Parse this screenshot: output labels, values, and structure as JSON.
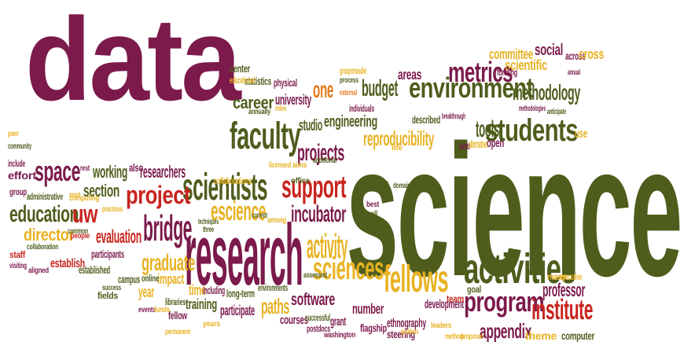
{
  "palette": {
    "maroon": "#7b1a4b",
    "olive": "#4e5d1c",
    "orange": "#e07b1d",
    "amber": "#e8b222",
    "red": "#c8241e",
    "brown": "#7a3c12",
    "gold": "#c99a23"
  },
  "words": [
    {
      "text": "data",
      "color": "maroon"
    },
    {
      "text": "science",
      "color": "olive"
    },
    {
      "text": "research",
      "color": "maroon"
    },
    {
      "text": "environment",
      "color": "olive"
    },
    {
      "text": "faculty",
      "color": "olive"
    },
    {
      "text": "scientists",
      "color": "olive"
    },
    {
      "text": "support",
      "color": "red"
    },
    {
      "text": "students",
      "color": "olive"
    },
    {
      "text": "activities",
      "color": "olive"
    },
    {
      "text": "fellows",
      "color": "amber"
    },
    {
      "text": "bridge",
      "color": "maroon"
    },
    {
      "text": "space",
      "color": "maroon"
    },
    {
      "text": "metrics",
      "color": "maroon"
    },
    {
      "text": "sciences",
      "color": "amber"
    },
    {
      "text": "program",
      "color": "maroon"
    },
    {
      "text": "institute",
      "color": "red"
    },
    {
      "text": "education",
      "color": "olive"
    },
    {
      "text": "escience",
      "color": "amber"
    },
    {
      "text": "project",
      "color": "red"
    },
    {
      "text": "projects",
      "color": "maroon"
    },
    {
      "text": "graduate",
      "color": "amber"
    },
    {
      "text": "activity",
      "color": "amber"
    },
    {
      "text": "incubator",
      "color": "maroon"
    },
    {
      "text": "career",
      "color": "olive"
    },
    {
      "text": "one",
      "color": "orange"
    },
    {
      "text": "budget",
      "color": "olive"
    },
    {
      "text": "methodology",
      "color": "olive"
    },
    {
      "text": "reproducibility",
      "color": "amber"
    },
    {
      "text": "uw",
      "color": "red"
    },
    {
      "text": "director",
      "color": "amber"
    },
    {
      "text": "evaluation",
      "color": "red"
    },
    {
      "text": "engineering",
      "color": "olive"
    },
    {
      "text": "tools",
      "color": "olive"
    },
    {
      "text": "professor",
      "color": "maroon"
    },
    {
      "text": "appendix",
      "color": "maroon"
    },
    {
      "text": "software",
      "color": "maroon"
    },
    {
      "text": "paths",
      "color": "amber"
    },
    {
      "text": "section",
      "color": "olive"
    },
    {
      "text": "working",
      "color": "olive"
    },
    {
      "text": "researchers",
      "color": "maroon"
    },
    {
      "text": "committee",
      "color": "amber"
    },
    {
      "text": "social",
      "color": "maroon"
    },
    {
      "text": "scientific",
      "color": "amber"
    },
    {
      "text": "university",
      "color": "maroon"
    },
    {
      "text": "areas",
      "color": "maroon"
    },
    {
      "text": "studio",
      "color": "olive"
    },
    {
      "text": "training",
      "color": "olive"
    },
    {
      "text": "year",
      "color": "amber"
    },
    {
      "text": "impact",
      "color": "amber"
    },
    {
      "text": "time",
      "color": "amber"
    },
    {
      "text": "number",
      "color": "maroon"
    },
    {
      "text": "development",
      "color": "maroon"
    },
    {
      "text": "participate",
      "color": "maroon"
    },
    {
      "text": "courses",
      "color": "maroon"
    },
    {
      "text": "ethnography",
      "color": "maroon"
    },
    {
      "text": "flagship",
      "color": "maroon"
    },
    {
      "text": "establish",
      "color": "red"
    },
    {
      "text": "established",
      "color": "olive"
    },
    {
      "text": "participants",
      "color": "maroon"
    },
    {
      "text": "campus",
      "color": "olive"
    },
    {
      "text": "fellow",
      "color": "maroon"
    },
    {
      "text": "theme",
      "color": "amber"
    },
    {
      "text": "computer",
      "color": "olive"
    },
    {
      "text": "steering",
      "color": "maroon"
    },
    {
      "text": "open",
      "color": "maroon"
    },
    {
      "text": "use",
      "color": "amber"
    },
    {
      "text": "see",
      "color": "maroon"
    },
    {
      "text": "alternative",
      "color": "amber"
    },
    {
      "text": "described",
      "color": "olive"
    },
    {
      "text": "statistics",
      "color": "olive"
    },
    {
      "text": "physical",
      "color": "maroon"
    },
    {
      "text": "center",
      "color": "olive"
    },
    {
      "text": "educational",
      "color": "amber"
    },
    {
      "text": "funding",
      "color": "maroon"
    },
    {
      "text": "across",
      "color": "maroon"
    },
    {
      "text": "including",
      "color": "maroon"
    },
    {
      "text": "long-term",
      "color": "olive"
    },
    {
      "text": "environments",
      "color": "olive"
    },
    {
      "text": "online",
      "color": "olive"
    },
    {
      "text": "libraries",
      "color": "olive"
    },
    {
      "text": "successful",
      "color": "olive"
    },
    {
      "text": "postdocs",
      "color": "maroon"
    },
    {
      "text": "grant",
      "color": "maroon"
    },
    {
      "text": "team",
      "color": "red"
    },
    {
      "text": "goal",
      "color": "olive"
    },
    {
      "text": "many",
      "color": "amber"
    },
    {
      "text": "executive",
      "color": "amber"
    },
    {
      "text": "domain",
      "color": "olive"
    },
    {
      "text": "current",
      "color": "olive"
    },
    {
      "text": "among",
      "color": "amber"
    },
    {
      "text": "techniques",
      "color": "olive"
    },
    {
      "text": "three",
      "color": "olive"
    },
    {
      "text": "collaborations",
      "color": "amber"
    },
    {
      "text": "collaboration",
      "color": "olive"
    },
    {
      "text": "computing",
      "color": "amber"
    },
    {
      "text": "practices",
      "color": "amber"
    },
    {
      "text": "administrative",
      "color": "olive"
    },
    {
      "text": "group",
      "color": "maroon"
    },
    {
      "text": "seed",
      "color": "amber"
    },
    {
      "text": "effort",
      "color": "maroon"
    },
    {
      "text": "include",
      "color": "maroon"
    },
    {
      "text": "community",
      "color": "olive"
    },
    {
      "text": "per",
      "color": "amber"
    },
    {
      "text": "staff",
      "color": "red"
    },
    {
      "text": "people",
      "color": "red"
    },
    {
      "text": "fields",
      "color": "olive"
    },
    {
      "text": "common",
      "color": "olive"
    },
    {
      "text": "visiting",
      "color": "maroon"
    },
    {
      "text": "aligned",
      "color": "maroon"
    },
    {
      "text": "success",
      "color": "olive"
    },
    {
      "text": "events",
      "color": "maroon"
    },
    {
      "text": "funds",
      "color": "amber"
    },
    {
      "text": "permanent",
      "color": "amber"
    },
    {
      "text": "years",
      "color": "amber"
    },
    {
      "text": "washington",
      "color": "maroon"
    },
    {
      "text": "positions",
      "color": "amber"
    },
    {
      "text": "leaders",
      "color": "amber"
    },
    {
      "text": "methods",
      "color": "amber"
    },
    {
      "text": "proposal",
      "color": "amber"
    },
    {
      "text": "range",
      "color": "olive"
    },
    {
      "text": "assessed",
      "color": "olive"
    },
    {
      "text": "best",
      "color": "maroon"
    },
    {
      "text": "well",
      "color": "olive"
    },
    {
      "text": "igert",
      "color": "olive"
    },
    {
      "text": "office",
      "color": "olive"
    },
    {
      "text": "licensed",
      "color": "amber"
    },
    {
      "text": "aims",
      "color": "amber"
    },
    {
      "text": "additional",
      "color": "olive"
    },
    {
      "text": "also",
      "color": "maroon"
    },
    {
      "text": "rest",
      "color": "maroon"
    },
    {
      "text": "annually",
      "color": "olive"
    },
    {
      "text": "roles",
      "color": "amber"
    },
    {
      "text": "groups",
      "color": "amber"
    },
    {
      "text": "made",
      "color": "amber"
    },
    {
      "text": "process",
      "color": "olive"
    },
    {
      "text": "external",
      "color": "orange"
    },
    {
      "text": "individuals",
      "color": "maroon"
    },
    {
      "text": "breakthrough",
      "color": "maroon"
    },
    {
      "text": "methodologies",
      "color": "maroon"
    },
    {
      "text": "anticipate",
      "color": "olive"
    },
    {
      "text": "annual",
      "color": "maroon"
    },
    {
      "text": "life",
      "color": "amber"
    },
    {
      "text": "cross",
      "color": "amber"
    }
  ]
}
